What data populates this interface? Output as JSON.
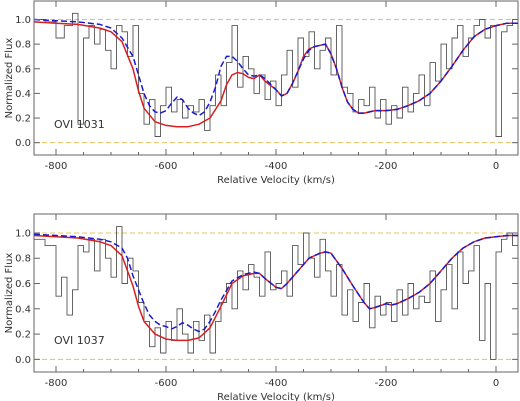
{
  "chart_data": [
    {
      "type": "line",
      "panel_label": "OVI 1031",
      "xlabel": "Relative Velocity (km/s)",
      "ylabel": "Normalized Flux",
      "xlim": [
        -840,
        40
      ],
      "ylim": [
        -0.1,
        1.15
      ],
      "x_ticks": [
        -800,
        -600,
        -400,
        -200,
        0
      ],
      "y_ticks": [
        0.0,
        0.2,
        0.4,
        0.6,
        0.8,
        1.0
      ],
      "reference_lines": [
        0.0,
        1.0
      ],
      "colors": {
        "data": "#555555",
        "fit_solid": "#d62020",
        "fit_dashed": "#1a1ad0",
        "reference": "#e8c060"
      },
      "series": [
        {
          "style": "step",
          "x": [
            -840,
            -820,
            -800,
            -785,
            -770,
            -760,
            -750,
            -740,
            -730,
            -720,
            -710,
            -700,
            -690,
            -680,
            -670,
            -660,
            -650,
            -640,
            -630,
            -620,
            -610,
            -600,
            -590,
            -580,
            -570,
            -560,
            -550,
            -540,
            -530,
            -520,
            -510,
            -500,
            -490,
            -480,
            -470,
            -460,
            -450,
            -440,
            -430,
            -420,
            -410,
            -400,
            -390,
            -380,
            -370,
            -360,
            -350,
            -340,
            -330,
            -320,
            -310,
            -300,
            -290,
            -280,
            -270,
            -260,
            -250,
            -240,
            -230,
            -220,
            -210,
            -200,
            -190,
            -180,
            -170,
            -160,
            -150,
            -140,
            -130,
            -120,
            -110,
            -100,
            -90,
            -80,
            -70,
            -60,
            -50,
            -40,
            -30,
            -20,
            -10,
            0,
            10,
            20,
            30
          ],
          "values": [
            1.0,
            0.98,
            0.85,
            0.95,
            1.05,
            0.15,
            0.85,
            0.95,
            0.8,
            0.92,
            0.75,
            0.6,
            0.95,
            0.9,
            0.7,
            0.95,
            0.4,
            0.15,
            0.35,
            0.05,
            0.3,
            0.45,
            0.25,
            0.35,
            0.2,
            0.3,
            0.25,
            0.35,
            0.1,
            0.3,
            0.55,
            0.3,
            0.65,
            0.95,
            0.45,
            0.7,
            0.6,
            0.4,
            0.55,
            0.35,
            0.5,
            0.3,
            0.55,
            0.75,
            0.45,
            0.85,
            0.7,
            0.9,
            0.6,
            0.75,
            0.85,
            0.55,
            0.95,
            0.45,
            0.4,
            0.25,
            0.35,
            0.3,
            0.45,
            0.2,
            0.35,
            0.15,
            0.3,
            0.2,
            0.45,
            0.25,
            0.4,
            0.55,
            0.3,
            0.65,
            0.5,
            0.8,
            0.6,
            0.85,
            0.95,
            0.7,
            0.85,
            0.95,
            1.0,
            0.85,
            0.95,
            0.05,
            0.9,
            0.95,
            1.0
          ]
        },
        {
          "style": "solid",
          "x": [
            -840,
            -800,
            -760,
            -720,
            -700,
            -680,
            -660,
            -650,
            -640,
            -620,
            -600,
            -580,
            -560,
            -540,
            -520,
            -500,
            -490,
            -480,
            -470,
            -460,
            -450,
            -440,
            -430,
            -420,
            -400,
            -390,
            -380,
            -370,
            -360,
            -350,
            -340,
            -330,
            -320,
            -310,
            -300,
            -290,
            -280,
            -270,
            -260,
            -250,
            -240,
            -230,
            -220,
            -200,
            -180,
            -160,
            -140,
            -120,
            -100,
            -80,
            -60,
            -40,
            -20,
            0,
            20,
            40
          ],
          "values": [
            0.98,
            0.97,
            0.96,
            0.93,
            0.9,
            0.82,
            0.6,
            0.42,
            0.28,
            0.17,
            0.14,
            0.13,
            0.13,
            0.15,
            0.2,
            0.34,
            0.47,
            0.55,
            0.57,
            0.56,
            0.53,
            0.52,
            0.55,
            0.5,
            0.43,
            0.38,
            0.4,
            0.48,
            0.58,
            0.7,
            0.76,
            0.78,
            0.79,
            0.8,
            0.72,
            0.6,
            0.45,
            0.33,
            0.27,
            0.24,
            0.24,
            0.25,
            0.26,
            0.26,
            0.27,
            0.3,
            0.34,
            0.4,
            0.5,
            0.62,
            0.75,
            0.86,
            0.92,
            0.95,
            0.97,
            0.97
          ]
        },
        {
          "style": "dashed",
          "x": [
            -840,
            -800,
            -760,
            -720,
            -700,
            -680,
            -660,
            -650,
            -640,
            -630,
            -620,
            -610,
            -600,
            -590,
            -580,
            -570,
            -560,
            -550,
            -540,
            -530,
            -520,
            -510,
            -500,
            -490,
            -480,
            -470,
            -460,
            -450,
            -440,
            -430,
            -420,
            -400,
            -390,
            -380,
            -370,
            -360,
            -350,
            -340,
            -330,
            -320,
            -310,
            -300,
            -290,
            -280,
            -270,
            -260,
            -250,
            -240,
            -230,
            -220,
            -200,
            -180,
            -160,
            -140,
            -120,
            -100,
            -80,
            -60,
            -40,
            -20,
            0,
            20,
            40
          ],
          "values": [
            1.0,
            0.99,
            0.98,
            0.96,
            0.93,
            0.85,
            0.7,
            0.55,
            0.4,
            0.3,
            0.25,
            0.24,
            0.26,
            0.32,
            0.37,
            0.35,
            0.28,
            0.24,
            0.22,
            0.25,
            0.33,
            0.45,
            0.62,
            0.7,
            0.7,
            0.66,
            0.6,
            0.55,
            0.54,
            0.55,
            0.52,
            0.43,
            0.38,
            0.4,
            0.48,
            0.58,
            0.68,
            0.75,
            0.78,
            0.79,
            0.8,
            0.72,
            0.6,
            0.45,
            0.33,
            0.27,
            0.24,
            0.24,
            0.25,
            0.26,
            0.26,
            0.27,
            0.3,
            0.34,
            0.4,
            0.5,
            0.62,
            0.75,
            0.86,
            0.92,
            0.95,
            0.97,
            0.97
          ]
        }
      ]
    },
    {
      "type": "line",
      "panel_label": "OVI 1037",
      "xlabel": "Relative Velocity (km/s)",
      "ylabel": "Normalized Flux",
      "xlim": [
        -840,
        40
      ],
      "ylim": [
        -0.1,
        1.15
      ],
      "x_ticks": [
        -800,
        -600,
        -400,
        -200,
        0
      ],
      "y_ticks": [
        0.0,
        0.2,
        0.4,
        0.6,
        0.8,
        1.0
      ],
      "reference_lines": [
        0.0,
        1.0
      ],
      "colors": {
        "data": "#555555",
        "fit_solid": "#d62020",
        "fit_dashed": "#1a1ad0",
        "reference": "#e8c060"
      },
      "series": [
        {
          "style": "step",
          "x": [
            -840,
            -820,
            -800,
            -790,
            -780,
            -770,
            -760,
            -750,
            -740,
            -730,
            -720,
            -710,
            -700,
            -690,
            -680,
            -670,
            -660,
            -650,
            -640,
            -630,
            -620,
            -610,
            -600,
            -590,
            -580,
            -570,
            -560,
            -550,
            -540,
            -530,
            -520,
            -510,
            -500,
            -490,
            -480,
            -470,
            -460,
            -450,
            -440,
            -430,
            -420,
            -410,
            -400,
            -390,
            -380,
            -370,
            -360,
            -350,
            -340,
            -330,
            -320,
            -310,
            -300,
            -290,
            -280,
            -270,
            -260,
            -250,
            -240,
            -230,
            -220,
            -210,
            -200,
            -190,
            -180,
            -170,
            -160,
            -150,
            -140,
            -130,
            -120,
            -110,
            -100,
            -90,
            -80,
            -70,
            -60,
            -50,
            -40,
            -30,
            -20,
            -10,
            0,
            10,
            20,
            30
          ],
          "values": [
            0.95,
            0.9,
            0.5,
            0.65,
            0.35,
            0.55,
            0.9,
            0.85,
            0.95,
            0.7,
            0.95,
            0.8,
            0.65,
            1.05,
            0.6,
            0.8,
            0.7,
            0.45,
            0.3,
            0.1,
            0.25,
            0.05,
            0.3,
            0.15,
            0.4,
            0.2,
            0.05,
            0.3,
            0.15,
            0.35,
            0.05,
            0.3,
            0.45,
            0.6,
            0.4,
            0.7,
            0.55,
            0.75,
            0.65,
            0.5,
            0.85,
            0.55,
            0.6,
            0.7,
            0.5,
            0.9,
            0.75,
            1.0,
            0.8,
            0.65,
            0.95,
            0.7,
            0.5,
            0.75,
            0.35,
            0.55,
            0.3,
            0.45,
            0.6,
            0.25,
            0.5,
            0.35,
            0.45,
            0.3,
            0.55,
            0.35,
            0.6,
            0.4,
            0.5,
            0.45,
            0.7,
            0.3,
            0.55,
            0.75,
            0.4,
            0.85,
            0.6,
            0.7,
            0.9,
            0.15,
            0.6,
            0.0,
            0.85,
            0.95,
            1.0,
            0.9
          ]
        },
        {
          "style": "solid",
          "x": [
            -840,
            -800,
            -760,
            -720,
            -700,
            -680,
            -660,
            -650,
            -640,
            -620,
            -600,
            -580,
            -560,
            -540,
            -520,
            -500,
            -480,
            -460,
            -440,
            -430,
            -420,
            -400,
            -390,
            -380,
            -360,
            -340,
            -320,
            -310,
            -300,
            -280,
            -260,
            -240,
            -230,
            -220,
            -200,
            -190,
            -180,
            -160,
            -140,
            -120,
            -100,
            -80,
            -60,
            -40,
            -20,
            0,
            20,
            40
          ],
          "values": [
            0.98,
            0.97,
            0.96,
            0.93,
            0.9,
            0.82,
            0.58,
            0.42,
            0.3,
            0.2,
            0.16,
            0.15,
            0.15,
            0.17,
            0.25,
            0.42,
            0.6,
            0.66,
            0.68,
            0.68,
            0.64,
            0.57,
            0.56,
            0.6,
            0.7,
            0.8,
            0.84,
            0.85,
            0.84,
            0.72,
            0.58,
            0.45,
            0.4,
            0.41,
            0.44,
            0.43,
            0.44,
            0.48,
            0.53,
            0.6,
            0.7,
            0.8,
            0.88,
            0.93,
            0.96,
            0.97,
            0.98,
            0.98
          ]
        },
        {
          "style": "dashed",
          "x": [
            -840,
            -800,
            -760,
            -720,
            -700,
            -680,
            -670,
            -660,
            -650,
            -640,
            -630,
            -620,
            -610,
            -600,
            -590,
            -580,
            -570,
            -560,
            -550,
            -540,
            -530,
            -520,
            -510,
            -500,
            -480,
            -460,
            -440,
            -430,
            -420,
            -400,
            -390,
            -380,
            -360,
            -340,
            -320,
            -310,
            -300,
            -280,
            -260,
            -240,
            -230,
            -220,
            -200,
            -190,
            -180,
            -160,
            -140,
            -120,
            -100,
            -80,
            -60,
            -40,
            -20,
            0,
            20,
            40
          ],
          "values": [
            0.99,
            0.98,
            0.97,
            0.95,
            0.93,
            0.88,
            0.8,
            0.66,
            0.55,
            0.44,
            0.35,
            0.3,
            0.27,
            0.26,
            0.24,
            0.26,
            0.29,
            0.27,
            0.24,
            0.22,
            0.24,
            0.3,
            0.38,
            0.47,
            0.62,
            0.67,
            0.69,
            0.68,
            0.64,
            0.57,
            0.56,
            0.6,
            0.7,
            0.8,
            0.84,
            0.85,
            0.84,
            0.72,
            0.58,
            0.45,
            0.4,
            0.41,
            0.44,
            0.43,
            0.44,
            0.48,
            0.53,
            0.6,
            0.7,
            0.8,
            0.88,
            0.93,
            0.96,
            0.97,
            0.98,
            0.98
          ]
        }
      ]
    }
  ]
}
